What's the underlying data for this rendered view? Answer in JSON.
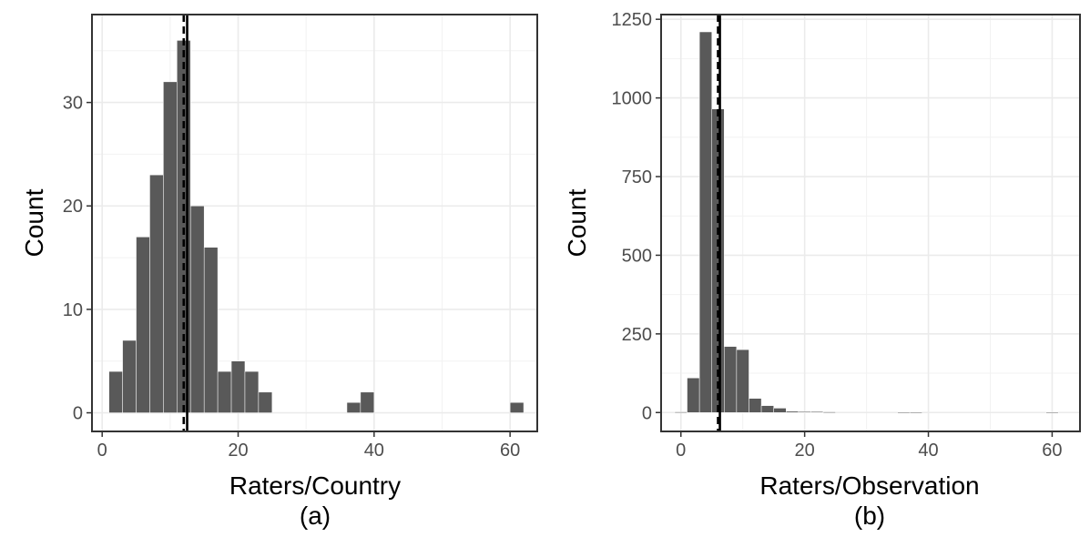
{
  "chart_data": [
    {
      "type": "bar",
      "subtitle": "(a)",
      "xlabel": "Raters/Country",
      "ylabel": "Count",
      "xlim": [
        -1.5,
        64
      ],
      "ylim": [
        -1.8,
        38.5
      ],
      "xticks": [
        0,
        20,
        40,
        60
      ],
      "yticks": [
        0,
        10,
        20,
        30
      ],
      "grid": true,
      "bin_width": 2.0,
      "bars": [
        {
          "x": 2,
          "count": 4
        },
        {
          "x": 4,
          "count": 7
        },
        {
          "x": 6,
          "count": 17
        },
        {
          "x": 8,
          "count": 23
        },
        {
          "x": 10,
          "count": 32
        },
        {
          "x": 12,
          "count": 36
        },
        {
          "x": 14,
          "count": 20
        },
        {
          "x": 16,
          "count": 16
        },
        {
          "x": 18,
          "count": 4
        },
        {
          "x": 20,
          "count": 5
        },
        {
          "x": 22,
          "count": 4
        },
        {
          "x": 24,
          "count": 2
        },
        {
          "x": 37,
          "count": 1
        },
        {
          "x": 39,
          "count": 2
        },
        {
          "x": 61,
          "count": 1
        }
      ],
      "vlines": [
        {
          "x": 12.0,
          "style": "dashed"
        },
        {
          "x": 12.5,
          "style": "solid"
        }
      ]
    },
    {
      "type": "bar",
      "subtitle": "(b)",
      "xlabel": "Raters/Observation",
      "ylabel": "Count",
      "xlim": [
        -3.2,
        64.5
      ],
      "ylim": [
        -60,
        1265
      ],
      "xticks": [
        0,
        20,
        40,
        60
      ],
      "yticks": [
        0,
        250,
        500,
        750,
        1000,
        1250
      ],
      "grid": true,
      "bin_width": 2.0,
      "bars": [
        {
          "x": 0,
          "count": 2
        },
        {
          "x": 2,
          "count": 110
        },
        {
          "x": 4,
          "count": 1210
        },
        {
          "x": 6,
          "count": 965
        },
        {
          "x": 8,
          "count": 210
        },
        {
          "x": 10,
          "count": 200
        },
        {
          "x": 12,
          "count": 45
        },
        {
          "x": 14,
          "count": 22
        },
        {
          "x": 16,
          "count": 14
        },
        {
          "x": 18,
          "count": 4
        },
        {
          "x": 20,
          "count": 3
        },
        {
          "x": 22,
          "count": 3
        },
        {
          "x": 24,
          "count": 2
        },
        {
          "x": 36,
          "count": 1
        },
        {
          "x": 38,
          "count": 1
        },
        {
          "x": 60,
          "count": 1
        }
      ],
      "vlines": [
        {
          "x": 6.0,
          "style": "dashed"
        },
        {
          "x": 6.3,
          "style": "solid"
        }
      ]
    }
  ],
  "colors": {
    "bar_fill": "#595959",
    "bar_edge": "#ffffff",
    "panel_border": "#333333",
    "grid_major": "#ebebeb",
    "grid_minor": "#f2f2f2",
    "tick_label": "#4d4d4d",
    "axis_title": "#000000",
    "vline": "#000000"
  }
}
